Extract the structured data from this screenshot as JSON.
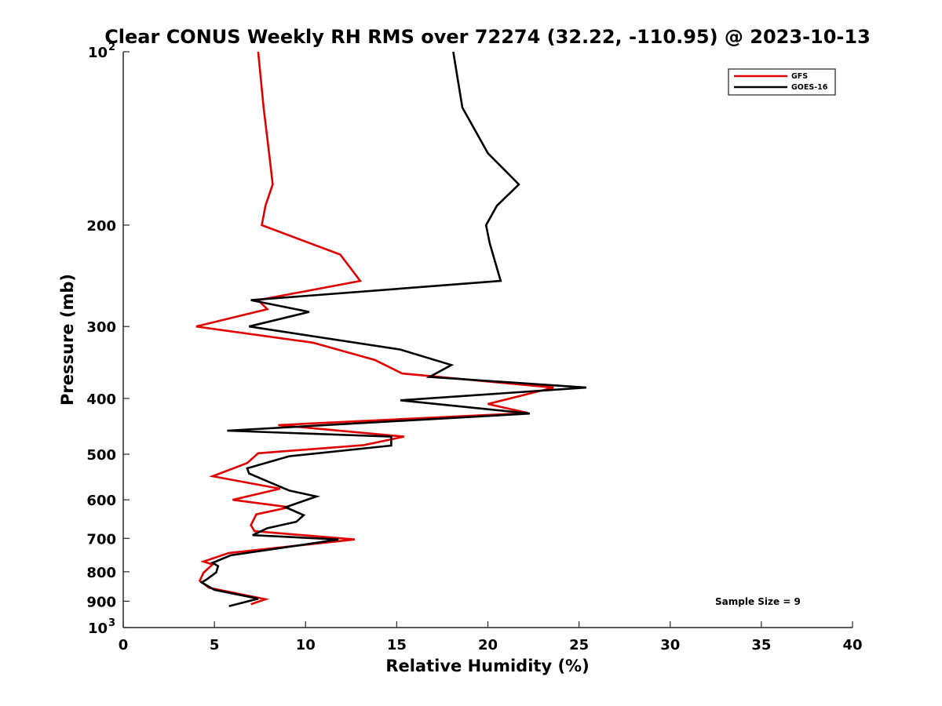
{
  "chart_data": {
    "type": "line",
    "title": "Clear CONUS Weekly RH RMS over 72274 (32.22, -110.95) @ 2023-10-13",
    "xlabel": "Relative Humidity (%)",
    "ylabel": "Pressure (mb)",
    "xlim": [
      0,
      40
    ],
    "ylim": [
      100,
      1000
    ],
    "y_scale": "log",
    "y_reversed": true,
    "grid": false,
    "legend_position": "top-right",
    "x_ticks": [
      0,
      5,
      10,
      15,
      20,
      25,
      30,
      35,
      40
    ],
    "x_tick_labels": [
      "0",
      "5",
      "10",
      "15",
      "20",
      "25",
      "30",
      "35",
      "40"
    ],
    "y_ticks": [
      100,
      200,
      300,
      400,
      500,
      600,
      700,
      800,
      900,
      1000
    ],
    "y_tick_labels": [
      {
        "base": "10",
        "sup": "2"
      },
      {
        "base": "200",
        "sup": ""
      },
      {
        "base": "300",
        "sup": ""
      },
      {
        "base": "400",
        "sup": ""
      },
      {
        "base": "500",
        "sup": ""
      },
      {
        "base": "600",
        "sup": ""
      },
      {
        "base": "700",
        "sup": ""
      },
      {
        "base": "800",
        "sup": ""
      },
      {
        "base": "900",
        "sup": ""
      },
      {
        "base": "10",
        "sup": "3"
      }
    ],
    "series": [
      {
        "name": "GFS",
        "color": "#e00000",
        "points": [
          [
            7.4,
            100
          ],
          [
            7.7,
            125
          ],
          [
            8.0,
            150
          ],
          [
            8.2,
            170
          ],
          [
            7.8,
            185
          ],
          [
            7.6,
            200
          ],
          [
            11.9,
            225
          ],
          [
            13.0,
            250
          ],
          [
            7.4,
            270
          ],
          [
            7.9,
            280
          ],
          [
            4.0,
            300
          ],
          [
            10.4,
            320
          ],
          [
            13.8,
            343
          ],
          [
            15.3,
            362
          ],
          [
            23.6,
            383
          ],
          [
            20.0,
            409
          ],
          [
            22.2,
            424
          ],
          [
            8.5,
            445
          ],
          [
            15.4,
            466
          ],
          [
            13.2,
            482
          ],
          [
            7.4,
            498
          ],
          [
            6.8,
            518
          ],
          [
            4.9,
            546
          ],
          [
            8.6,
            574
          ],
          [
            6.0,
            600
          ],
          [
            9.1,
            618
          ],
          [
            7.3,
            636
          ],
          [
            7.0,
            664
          ],
          [
            7.2,
            680
          ],
          [
            12.7,
            703
          ],
          [
            5.8,
            742
          ],
          [
            4.4,
            768
          ],
          [
            4.9,
            777
          ],
          [
            4.4,
            803
          ],
          [
            4.2,
            829
          ],
          [
            4.7,
            853
          ],
          [
            7.8,
            893
          ],
          [
            7.0,
            911
          ]
        ]
      },
      {
        "name": "GOES-16",
        "color": "#000000",
        "points": [
          [
            18.1,
            100
          ],
          [
            18.6,
            125
          ],
          [
            20.0,
            150
          ],
          [
            21.7,
            170
          ],
          [
            20.5,
            185
          ],
          [
            19.9,
            200
          ],
          [
            20.1,
            215
          ],
          [
            20.7,
            250
          ],
          [
            7.0,
            270
          ],
          [
            10.2,
            283
          ],
          [
            6.9,
            300
          ],
          [
            15.2,
            329
          ],
          [
            18.0,
            350
          ],
          [
            16.8,
            367
          ],
          [
            25.4,
            383
          ],
          [
            15.2,
            403
          ],
          [
            22.3,
            425
          ],
          [
            5.7,
            455
          ],
          [
            14.7,
            466
          ],
          [
            14.7,
            483
          ],
          [
            9.1,
            504
          ],
          [
            6.8,
            529
          ],
          [
            6.9,
            540
          ],
          [
            9.1,
            578
          ],
          [
            10.6,
            592
          ],
          [
            8.9,
            618
          ],
          [
            9.9,
            638
          ],
          [
            9.5,
            655
          ],
          [
            7.9,
            672
          ],
          [
            7.1,
            691
          ],
          [
            11.8,
            703
          ],
          [
            9.6,
            720
          ],
          [
            5.9,
            749
          ],
          [
            4.9,
            772
          ],
          [
            5.2,
            782
          ],
          [
            5.1,
            802
          ],
          [
            4.6,
            824
          ],
          [
            4.3,
            835
          ],
          [
            5.0,
            860
          ],
          [
            7.4,
            891
          ],
          [
            5.8,
            918
          ]
        ]
      }
    ],
    "annotations": [
      "Sample Size = 9"
    ]
  }
}
